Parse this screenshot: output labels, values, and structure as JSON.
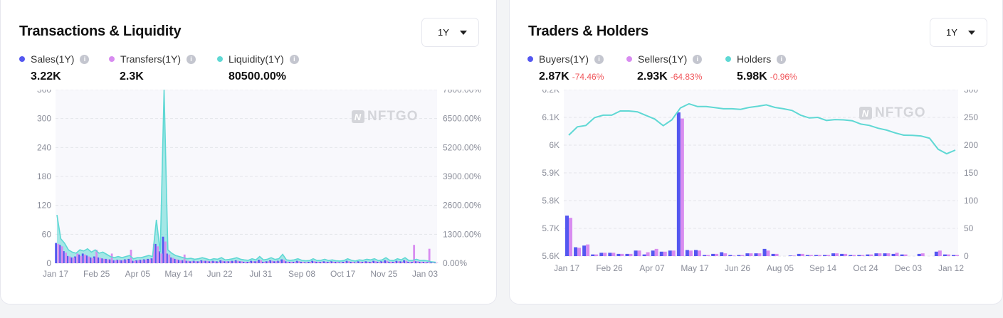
{
  "colors": {
    "sales": "#5457f0",
    "transfers": "#d88cf0",
    "liquidity": "#5fd8d4",
    "negative": "#f0555a",
    "plot_bg": "#f8f8fc"
  },
  "watermark": "NFTGO",
  "left": {
    "title": "Transactions & Liquidity",
    "period": "1Y",
    "metrics": [
      {
        "label": "Sales(1Y)",
        "value": "3.22K"
      },
      {
        "label": "Transfers(1Y)",
        "value": "2.3K"
      },
      {
        "label": "Liquidity(1Y)",
        "value": "80500.00%"
      }
    ]
  },
  "right": {
    "title": "Traders & Holders",
    "period": "1Y",
    "metrics": [
      {
        "label": "Buyers(1Y)",
        "value": "2.87K",
        "change": "-74.46%"
      },
      {
        "label": "Sellers(1Y)",
        "value": "2.93K",
        "change": "-64.83%"
      },
      {
        "label": "Holders",
        "value": "5.98K",
        "change": "-0.96%"
      }
    ]
  },
  "chart_data": [
    {
      "type": "bar+line",
      "grid": true,
      "xticks": [
        "Jan 17",
        "Feb 25",
        "Apr 05",
        "May 14",
        "Jun 22",
        "Jul 31",
        "Sep 08",
        "Oct 17",
        "Nov 25",
        "Jan 03"
      ],
      "yticks_left": [
        "0",
        "60",
        "120",
        "180",
        "240",
        "300",
        "360"
      ],
      "ylim_left": [
        0,
        360
      ],
      "yticks_right": [
        "0.00%",
        "1300.00%",
        "2600.00%",
        "3900.00%",
        "5200.00%",
        "6500.00%",
        "7800.00%"
      ],
      "ylim_right": [
        0,
        7800
      ],
      "series": [
        {
          "name": "Sales(1Y)",
          "type": "bar",
          "axis": "left",
          "values": [
            42,
            38,
            25,
            15,
            12,
            14,
            18,
            20,
            16,
            12,
            14,
            12,
            10,
            9,
            8,
            6,
            7,
            6,
            8,
            9,
            5,
            6,
            7,
            8,
            9,
            10,
            40,
            25,
            55,
            20,
            12,
            9,
            7,
            6,
            5,
            4,
            5,
            4,
            6,
            5,
            4,
            5,
            4,
            6,
            4,
            4,
            5,
            6,
            4,
            3,
            3,
            5,
            4,
            7,
            3,
            4,
            6,
            4,
            5,
            8,
            4,
            3,
            3,
            5,
            3,
            2,
            3,
            5,
            3,
            3,
            4,
            3,
            4,
            3,
            2,
            3,
            5,
            3,
            2,
            4,
            3,
            4,
            3,
            5,
            3,
            4,
            6,
            3,
            3,
            5,
            4,
            6,
            3,
            3,
            4,
            3,
            3,
            2,
            2,
            1
          ]
        },
        {
          "name": "Transfers(1Y)",
          "type": "bar",
          "axis": "left",
          "values": [
            40,
            35,
            22,
            14,
            12,
            20,
            15,
            18,
            14,
            11,
            28,
            11,
            9,
            8,
            20,
            6,
            7,
            6,
            7,
            28,
            5,
            6,
            6,
            7,
            8,
            40,
            35,
            20,
            45,
            18,
            11,
            8,
            6,
            18,
            5,
            4,
            4,
            4,
            5,
            5,
            4,
            4,
            3,
            5,
            4,
            4,
            4,
            5,
            4,
            3,
            3,
            4,
            4,
            6,
            3,
            4,
            5,
            4,
            4,
            7,
            3,
            3,
            3,
            4,
            3,
            2,
            3,
            4,
            3,
            3,
            3,
            3,
            3,
            3,
            2,
            3,
            4,
            3,
            2,
            3,
            3,
            3,
            3,
            4,
            3,
            3,
            5,
            3,
            3,
            4,
            3,
            5,
            3,
            38,
            4,
            3,
            3,
            30,
            2,
            1
          ]
        },
        {
          "name": "Liquidity(1Y)",
          "type": "line",
          "axis": "right",
          "values": [
            2170,
            1100,
            900,
            600,
            500,
            450,
            600,
            550,
            650,
            500,
            600,
            450,
            500,
            400,
            300,
            250,
            300,
            250,
            300,
            350,
            200,
            250,
            250,
            300,
            350,
            300,
            1950,
            500,
            7800,
            600,
            450,
            350,
            300,
            250,
            200,
            220,
            180,
            200,
            250,
            200,
            150,
            200,
            180,
            250,
            150,
            170,
            200,
            250,
            180,
            150,
            130,
            200,
            150,
            300,
            150,
            180,
            250,
            170,
            200,
            400,
            150,
            130,
            150,
            200,
            130,
            110,
            120,
            200,
            120,
            130,
            180,
            120,
            150,
            110,
            100,
            120,
            200,
            130,
            100,
            150,
            130,
            180,
            150,
            200,
            120,
            150,
            250,
            130,
            120,
            200,
            150,
            250,
            120,
            130,
            180,
            120,
            130,
            100,
            60,
            40
          ]
        }
      ]
    },
    {
      "type": "bar+line",
      "grid": true,
      "xticks": [
        "Jan 17",
        "Feb 26",
        "Apr 07",
        "May 17",
        "Jun 26",
        "Aug 05",
        "Sep 14",
        "Oct 24",
        "Dec 03",
        "Jan 12"
      ],
      "yticks_left": [
        "5.6K",
        "5.7K",
        "5.8K",
        "5.9K",
        "6K",
        "6.1K",
        "6.2K"
      ],
      "ylim_left": [
        5600,
        6200
      ],
      "yticks_right": [
        "0",
        "50",
        "100",
        "150",
        "200",
        "250",
        "300"
      ],
      "ylim_right": [
        0,
        300
      ],
      "series": [
        {
          "name": "Buyers(1Y)",
          "type": "bar",
          "axis": "right",
          "values": [
            73,
            16,
            19,
            3,
            6,
            6,
            4,
            4,
            10,
            3,
            10,
            8,
            10,
            259,
            11,
            11,
            2,
            4,
            7,
            2,
            2,
            5,
            5,
            13,
            4,
            0,
            1,
            4,
            2,
            2,
            2,
            5,
            4,
            2,
            2,
            3,
            5,
            5,
            4,
            3,
            0,
            4,
            0,
            8,
            3,
            2
          ]
        },
        {
          "name": "Sellers(1Y)",
          "type": "bar",
          "axis": "right",
          "values": [
            69,
            15,
            21,
            3,
            6,
            6,
            4,
            4,
            10,
            7,
            13,
            8,
            10,
            248,
            10,
            10,
            2,
            4,
            5,
            1,
            2,
            5,
            5,
            10,
            4,
            0,
            1,
            4,
            2,
            2,
            2,
            5,
            4,
            2,
            2,
            3,
            5,
            5,
            6,
            3,
            0,
            5,
            0,
            10,
            3,
            2
          ]
        },
        {
          "name": "Holders",
          "type": "line",
          "axis": "left",
          "values": [
            6036,
            6066,
            6071,
            6099,
            6108,
            6108,
            6123,
            6123,
            6120,
            6107,
            6094,
            6070,
            6091,
            6134,
            6149,
            6139,
            6139,
            6135,
            6131,
            6131,
            6129,
            6136,
            6140,
            6145,
            6136,
            6131,
            6125,
            6108,
            6098,
            6100,
            6089,
            6092,
            6091,
            6088,
            6076,
            6071,
            6061,
            6054,
            6044,
            6036,
            6035,
            6033,
            6025,
            5985,
            5969,
            5982
          ]
        }
      ]
    }
  ]
}
